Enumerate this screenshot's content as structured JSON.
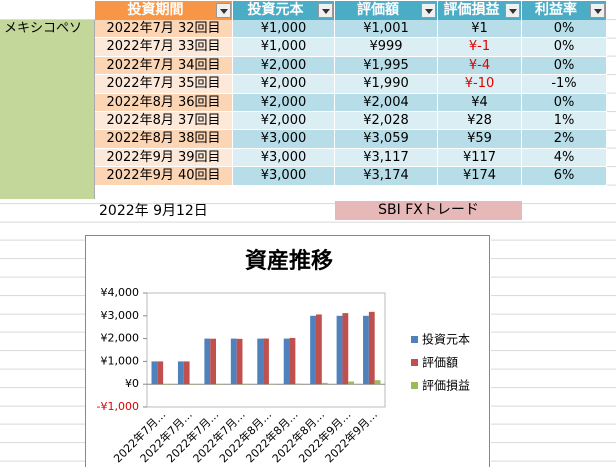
{
  "sheet": {
    "label": "メキシコペソ",
    "header": [
      "投資期間",
      "投資元本",
      "評価額",
      "評価損益",
      "利益率"
    ],
    "rows": [
      [
        "2022年7月 32回目",
        "¥1,000",
        "¥1,001",
        "¥1",
        "0%"
      ],
      [
        "2022年7月 33回目",
        "¥1,000",
        "¥999",
        "¥-1",
        "0%"
      ],
      [
        "2022年7月 34回目",
        "¥2,000",
        "¥1,995",
        "¥-4",
        "0%"
      ],
      [
        "2022年7月 35回目",
        "¥2,000",
        "¥1,990",
        "¥-10",
        "-1%"
      ],
      [
        "2022年8月 36回目",
        "¥2,000",
        "¥2,004",
        "¥4",
        "0%"
      ],
      [
        "2022年8月 37回目",
        "¥2,000",
        "¥2,028",
        "¥28",
        "1%"
      ],
      [
        "2022年8月 38回目",
        "¥3,000",
        "¥3,059",
        "¥59",
        "2%"
      ],
      [
        "2022年9月 39回目",
        "¥3,000",
        "¥3,117",
        "¥117",
        "4%"
      ],
      [
        "2022年9月 40回目",
        "¥3,000",
        "¥3,174",
        "¥174",
        "6%"
      ]
    ],
    "date": "2022年 9月12日",
    "button": "SBI FXトレード"
  },
  "chart_data": {
    "type": "bar",
    "title": "資産推移",
    "categories": [
      "2022年7月…",
      "2022年7月…",
      "2022年7月…",
      "2022年7月…",
      "2022年8月…",
      "2022年8月…",
      "2022年8月…",
      "2022年9月…",
      "2022年9月…"
    ],
    "series": [
      {
        "name": "投資元本",
        "color": "#4f81bd",
        "values": [
          1000,
          1000,
          2000,
          2000,
          2000,
          2000,
          3000,
          3000,
          3000
        ]
      },
      {
        "name": "評価額",
        "color": "#c0504d",
        "values": [
          1001,
          999,
          1995,
          1990,
          2004,
          2028,
          3059,
          3117,
          3174
        ]
      },
      {
        "name": "評価損益",
        "color": "#9bbb59",
        "values": [
          1,
          -1,
          -4,
          -10,
          4,
          28,
          59,
          117,
          174
        ]
      }
    ],
    "ylim": [
      -1000,
      4000
    ],
    "yticks": [
      {
        "value": -1000,
        "label": "-¥1,000"
      },
      {
        "value": 0,
        "label": "¥0"
      },
      {
        "value": 1000,
        "label": "¥1,000"
      },
      {
        "value": 2000,
        "label": "¥2,000"
      },
      {
        "value": 3000,
        "label": "¥3,000"
      },
      {
        "value": 4000,
        "label": "¥4,000"
      }
    ],
    "legend": "right"
  }
}
